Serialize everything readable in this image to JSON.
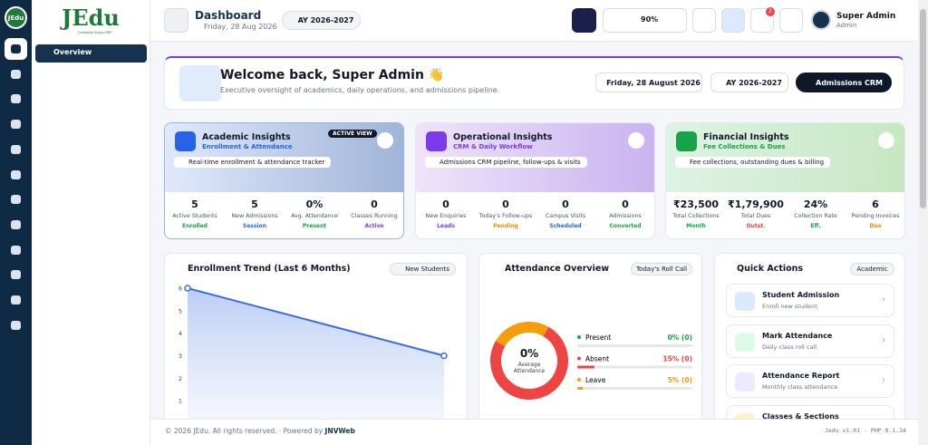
{
  "sidebar": {
    "logo": "JEdu",
    "tagline": "Complete School ERP",
    "menu": [
      "Overview"
    ]
  },
  "header": {
    "title": "Dashboard",
    "date": "Friday, 28 Aug 2026",
    "year": "AY 2026-2027",
    "zoom": "90%",
    "notifications": "2",
    "user": {
      "name": "Super Admin",
      "role": "Admin"
    }
  },
  "welcome": {
    "title": "Welcome back, Super Admin 👋",
    "subtitle": "Executive oversight of academics, daily operations, and admissions pipeline.",
    "date": "Friday, 28 August 2026",
    "year": "AY 2026-2027",
    "button": "Admissions CRM"
  },
  "insights": [
    {
      "title": "Academic Insights",
      "subtitle": "Enrollment & Attendance",
      "badge": "ACTIVE VIEW",
      "description": "Real-time enrollment & attendance tracker",
      "stats": [
        {
          "value": "5",
          "label": "Active Students",
          "tag": "Enrolled"
        },
        {
          "value": "5",
          "label": "New Admissions",
          "tag": "Session"
        },
        {
          "value": "0%",
          "label": "Avg. Attendance",
          "tag": "Present"
        },
        {
          "value": "0",
          "label": "Classes Running",
          "tag": "Active"
        }
      ]
    },
    {
      "title": "Operational Insights",
      "subtitle": "CRM & Daily Workflow",
      "description": "Admissions CRM pipeline, follow-ups & visits",
      "stats": [
        {
          "value": "0",
          "label": "New Enquiries",
          "tag": "Leads"
        },
        {
          "value": "0",
          "label": "Today's Follow-ups",
          "tag": "Pending"
        },
        {
          "value": "0",
          "label": "Campus Visits",
          "tag": "Scheduled"
        },
        {
          "value": "0",
          "label": "Admissions",
          "tag": "Converted"
        }
      ]
    },
    {
      "title": "Financial Insights",
      "subtitle": "Fee Collections & Dues",
      "description": "Fee collections, outstanding dues & billing",
      "stats": [
        {
          "value": "₹23,500",
          "label": "Total Collections",
          "tag": "Month"
        },
        {
          "value": "₹1,79,900",
          "label": "Total Dues",
          "tag": "Outst."
        },
        {
          "value": "24%",
          "label": "Collection Rate",
          "tag": "Eff."
        },
        {
          "value": "6",
          "label": "Pending Invoices",
          "tag": "Due"
        }
      ]
    }
  ],
  "enrollment": {
    "title": "Enrollment Trend (Last 6 Months)",
    "filter": "New Students",
    "chart": {
      "type": "line",
      "values": [
        6,
        3
      ],
      "ylim": [
        0,
        6
      ],
      "yticks": [
        1,
        2,
        3,
        4,
        5,
        6
      ],
      "color": "#3b6fd8"
    }
  },
  "attendance": {
    "title": "Attendance Overview",
    "badge": "Today's Roll Call",
    "center": "0%",
    "center_label": "Average Attendance",
    "items": [
      {
        "name": "Present",
        "value": 0,
        "label": "0% (0)",
        "color": "#16a34a"
      },
      {
        "name": "Absent",
        "value": 15,
        "label": "15% (0)",
        "color": "#ef4444"
      },
      {
        "name": "Leave",
        "value": 5,
        "label": "5% (0)",
        "color": "#f59e0b"
      }
    ]
  },
  "quick_actions": {
    "title": "Quick Actions",
    "badge": "Academic",
    "items": [
      {
        "title": "Student Admission",
        "subtitle": "Enroll new student"
      },
      {
        "title": "Mark Attendance",
        "subtitle": "Daily class roll call"
      },
      {
        "title": "Attendance Report",
        "subtitle": "Monthly class attendance"
      },
      {
        "title": "Classes & Sections"
      }
    ]
  },
  "footer": {
    "text": "© 2026 JEdu. All rights reserved. · Powered by ",
    "brand": "JNVWeb",
    "version": "Jedu v1.01 · PHP 8.1.34"
  }
}
